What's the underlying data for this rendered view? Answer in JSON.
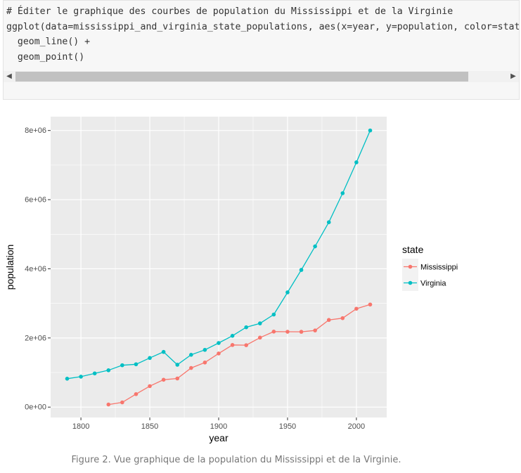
{
  "code": {
    "lines": [
      "# Éditer le graphique des courbes de population du Mississippi et de la Virginie",
      "ggplot(data=mississippi_and_virginia_state_populations, aes(x=year, y=population, color=state)) +",
      "  geom_line() +",
      "  geom_point()"
    ],
    "scroll_left_icon": "chevron-left",
    "scroll_right_icon": "chevron-right"
  },
  "chart_data": {
    "type": "line",
    "xlabel": "year",
    "ylabel": "population",
    "xlim": [
      1778,
      2022
    ],
    "ylim": [
      -300000,
      8400000
    ],
    "x_ticks": [
      1800,
      1850,
      1900,
      1950,
      2000
    ],
    "x_tick_labels": [
      "1800",
      "1850",
      "1900",
      "1950",
      "2000"
    ],
    "y_ticks": [
      0,
      2000000,
      4000000,
      6000000,
      8000000
    ],
    "y_tick_labels": [
      "0e+00",
      "2e+06",
      "4e+06",
      "6e+06",
      "8e+06"
    ],
    "grid": true,
    "legend": {
      "title": "state",
      "placement": "right"
    },
    "series": [
      {
        "name": "Mississippi",
        "color": "#F8766D",
        "x": [
          1820,
          1830,
          1840,
          1850,
          1860,
          1870,
          1880,
          1890,
          1900,
          1910,
          1920,
          1930,
          1940,
          1950,
          1960,
          1970,
          1980,
          1990,
          2000,
          2010
        ],
        "y": [
          75000,
          137000,
          376000,
          607000,
          791000,
          828000,
          1132000,
          1290000,
          1551000,
          1797000,
          1791000,
          2010000,
          2184000,
          2179000,
          2178000,
          2217000,
          2521000,
          2573000,
          2845000,
          2967000
        ]
      },
      {
        "name": "Virginia",
        "color": "#00BFC4",
        "x": [
          1790,
          1800,
          1810,
          1820,
          1830,
          1840,
          1850,
          1860,
          1870,
          1880,
          1890,
          1900,
          1910,
          1920,
          1930,
          1940,
          1950,
          1960,
          1970,
          1980,
          1990,
          2000,
          2010
        ],
        "y": [
          822000,
          880000,
          975000,
          1065000,
          1211000,
          1239000,
          1421000,
          1596000,
          1225000,
          1513000,
          1656000,
          1854000,
          2062000,
          2309000,
          2422000,
          2678000,
          3319000,
          3967000,
          4648000,
          5347000,
          6187000,
          7079000,
          8001000
        ]
      }
    ]
  },
  "caption": "Figure 2. Vue graphique de la population du Mississippi et de la Virginie."
}
